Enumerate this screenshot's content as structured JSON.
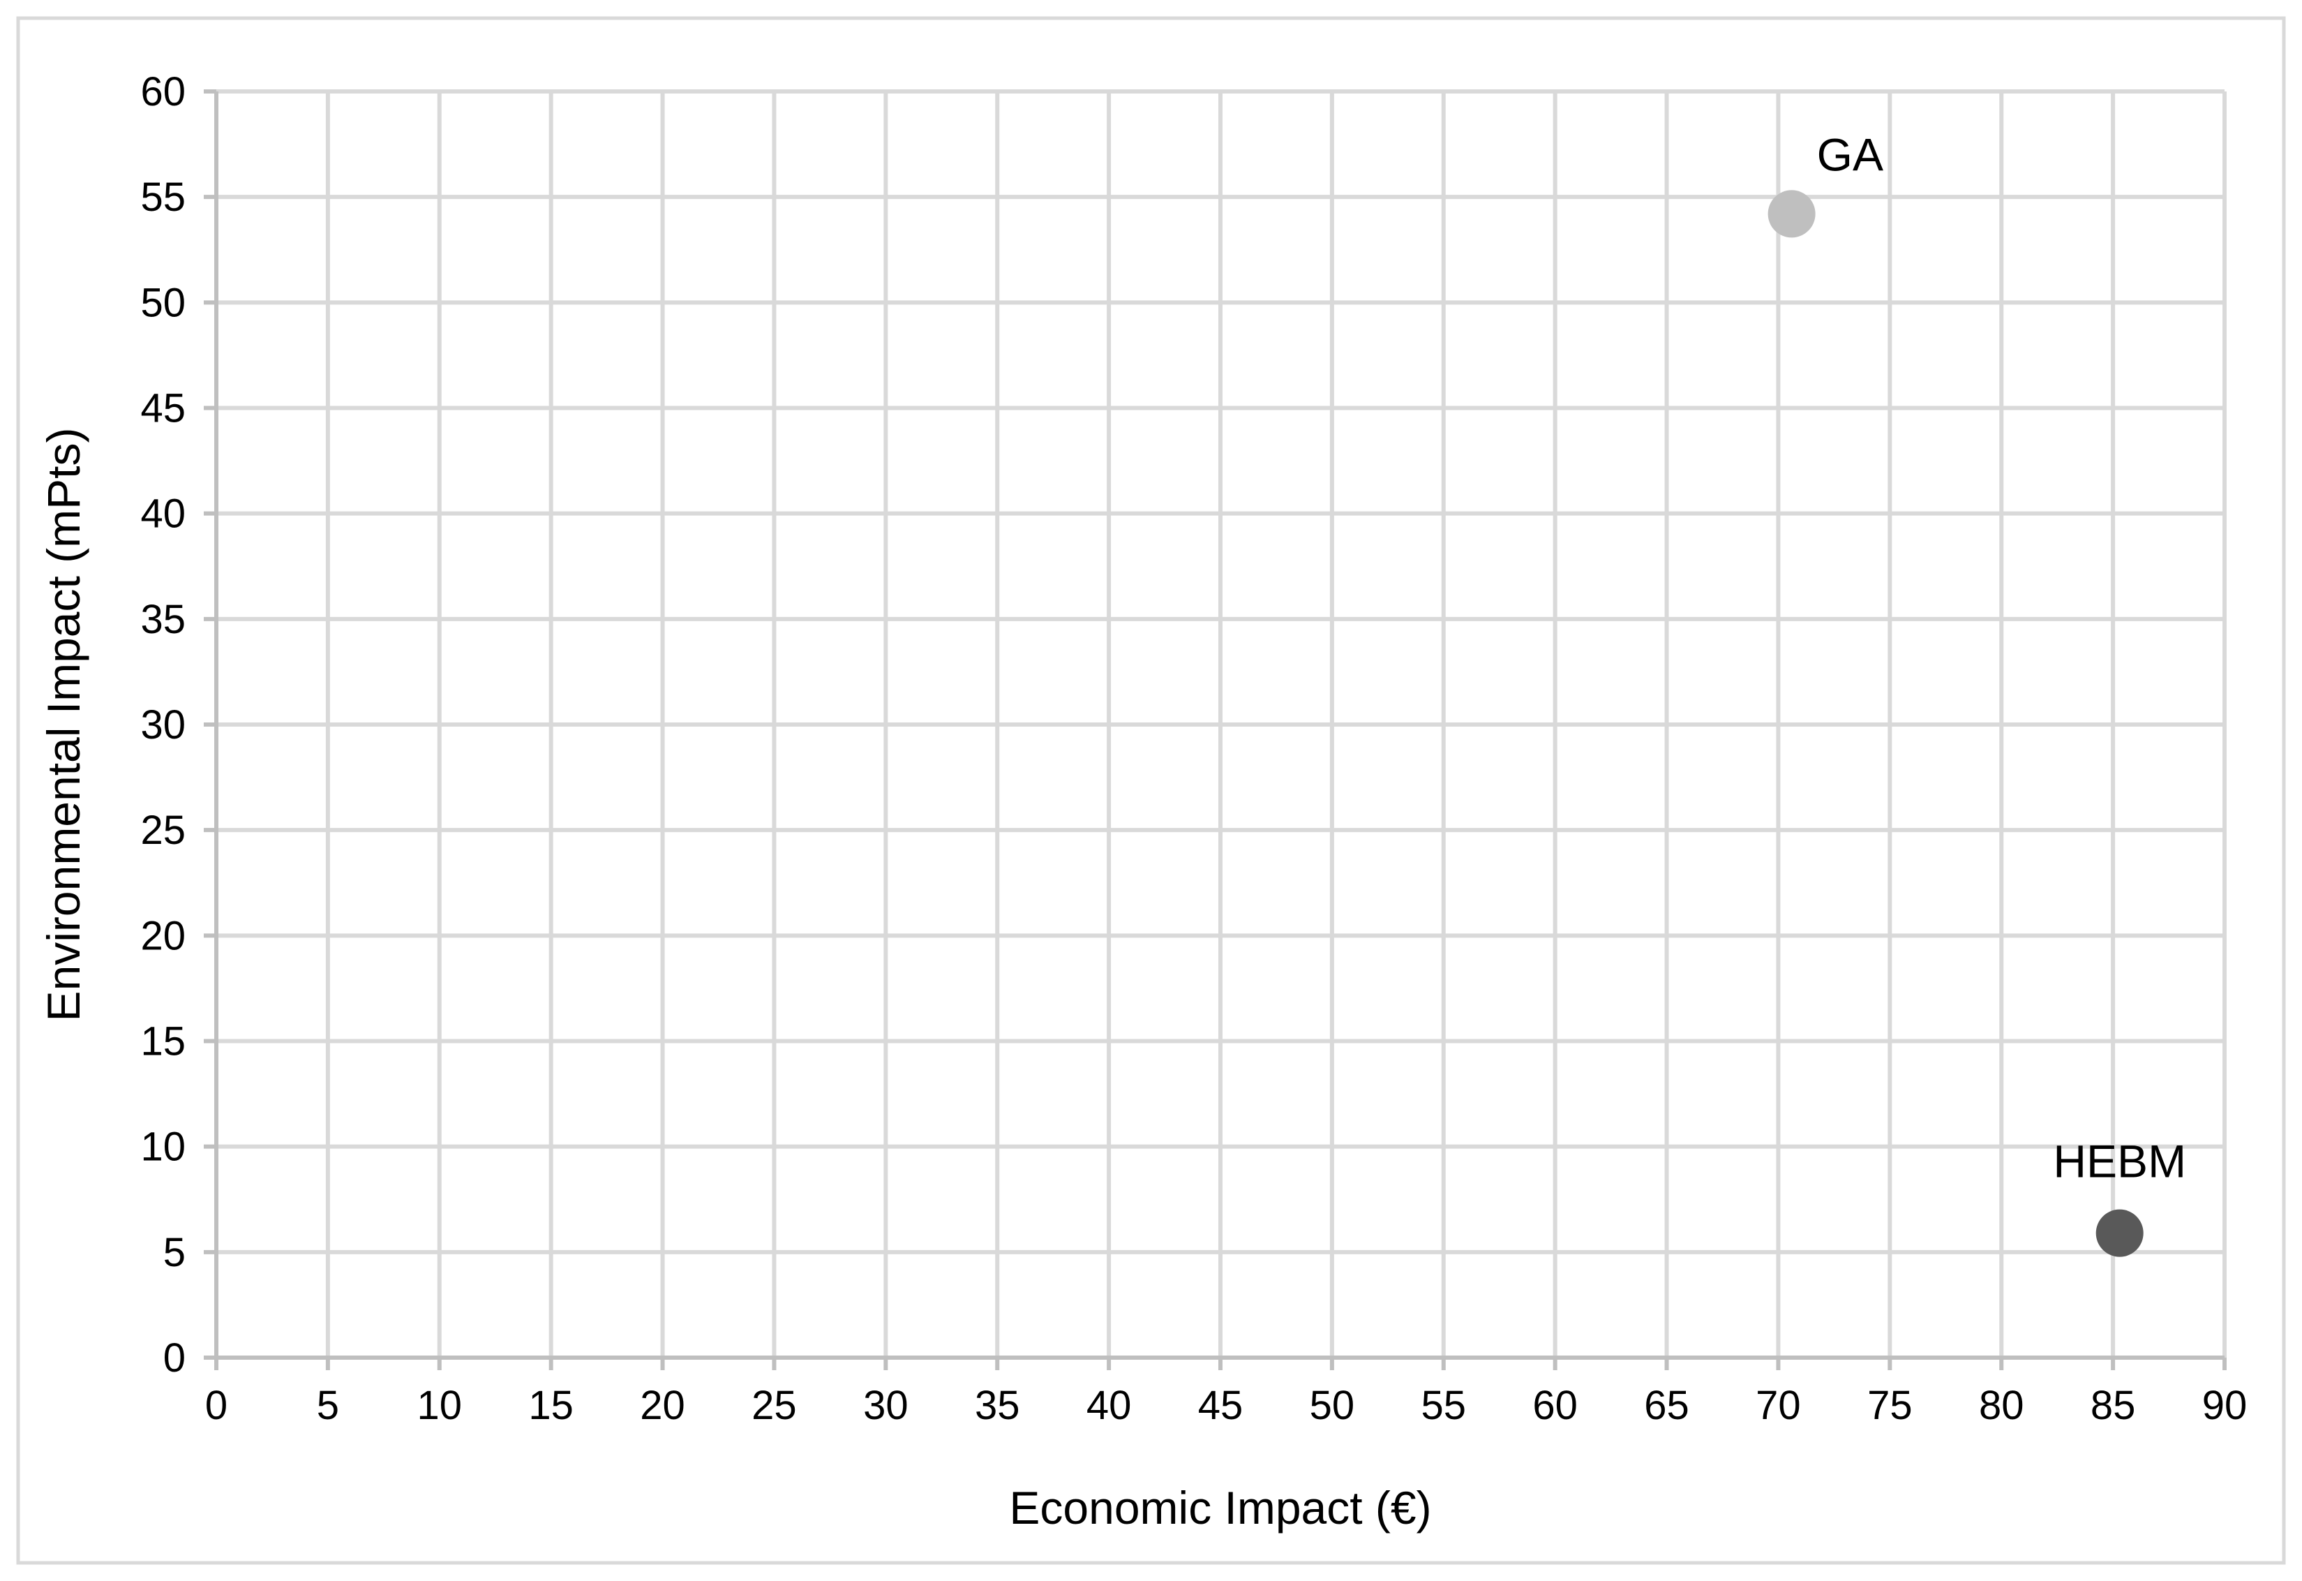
{
  "chart_data": {
    "type": "scatter",
    "title": "",
    "xlabel": "Economic Impact (€)",
    "ylabel": "Environmental Impact (mPts)",
    "xlim": [
      0,
      90
    ],
    "ylim": [
      0,
      60
    ],
    "x_ticks": [
      0,
      5,
      10,
      15,
      20,
      25,
      30,
      35,
      40,
      45,
      50,
      55,
      60,
      65,
      70,
      75,
      80,
      85,
      90
    ],
    "y_ticks": [
      0,
      5,
      10,
      15,
      20,
      25,
      30,
      35,
      40,
      45,
      50,
      55,
      60
    ],
    "grid": true,
    "legend": "none",
    "points": [
      {
        "label": "GA",
        "x": 70.6,
        "y": 54.2,
        "color": "#bfbfbf"
      },
      {
        "label": "HEBM",
        "x": 85.3,
        "y": 5.9,
        "color": "#595959"
      }
    ]
  }
}
